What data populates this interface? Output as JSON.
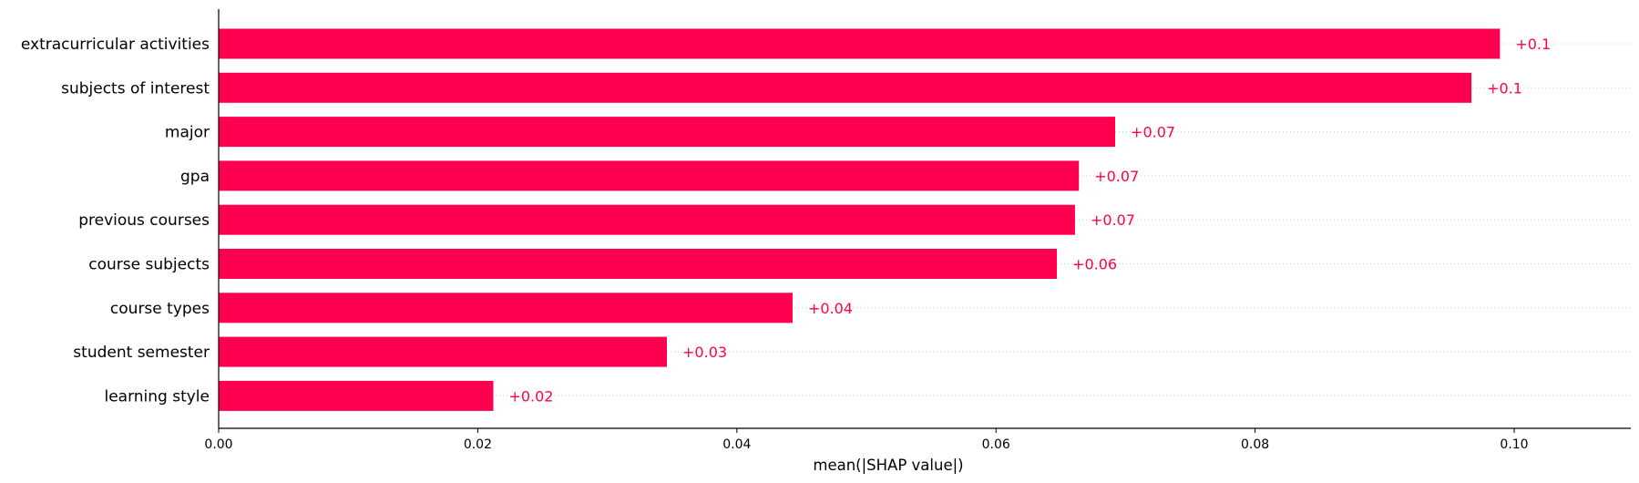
{
  "chart_data": {
    "type": "bar",
    "orientation": "horizontal",
    "categories": [
      "extracurricular activities",
      "subjects of interest",
      "major",
      "gpa",
      "previous courses",
      "course subjects",
      "course types",
      "student semester",
      "learning style"
    ],
    "values": [
      0.0989,
      0.0967,
      0.0692,
      0.0664,
      0.0661,
      0.0647,
      0.0443,
      0.0346,
      0.0212
    ],
    "value_labels": [
      "+0.1",
      "+0.1",
      "+0.07",
      "+0.07",
      "+0.07",
      "+0.06",
      "+0.04",
      "+0.03",
      "+0.02"
    ],
    "xlabel": "mean(|SHAP value|)",
    "ylabel": "",
    "title": "",
    "xlim": [
      0,
      0.109
    ],
    "xticks": [
      0.0,
      0.02,
      0.04,
      0.06,
      0.08,
      0.1
    ],
    "xtick_labels": [
      "0.00",
      "0.02",
      "0.04",
      "0.06",
      "0.08",
      "0.10"
    ],
    "bar_color": "#ff0051",
    "grid": "dotted guide lines per row",
    "legend": "none"
  }
}
